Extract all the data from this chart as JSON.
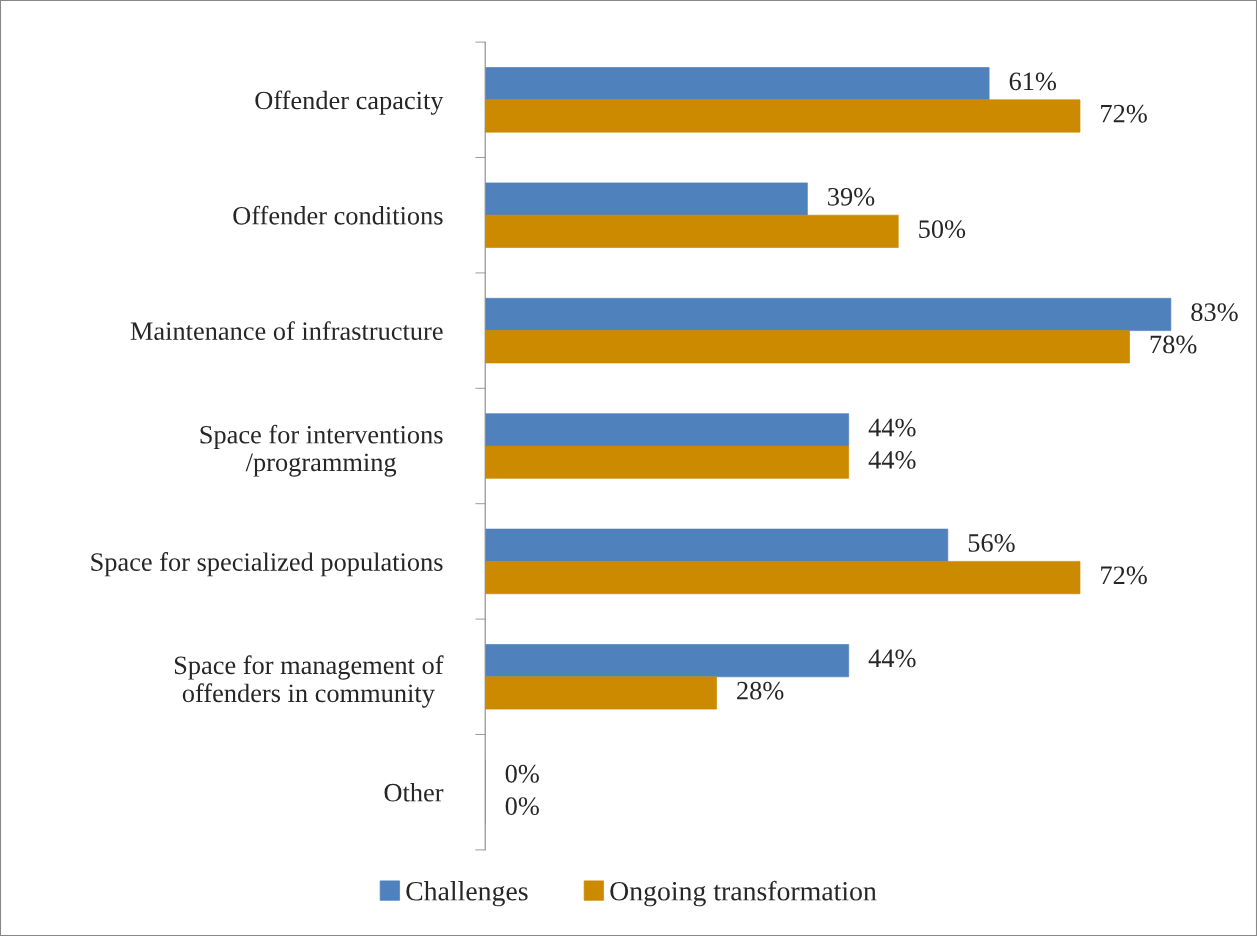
{
  "chart_data": {
    "type": "bar",
    "orientation": "horizontal",
    "categories": [
      "Offender capacity",
      "Offender conditions",
      "Maintenance of infrastructure",
      "Space for interventions\n/programming",
      "Space for specialized populations",
      "Space for management of\noffenders in community",
      "Other"
    ],
    "series": [
      {
        "name": "Challenges",
        "color": "#4f81bd",
        "values": [
          61,
          39,
          83,
          44,
          56,
          44,
          0
        ],
        "value_labels": [
          "61%",
          "39%",
          "83%",
          "44%",
          "56%",
          "44%",
          "0%"
        ]
      },
      {
        "name": "Ongoing transformation",
        "color": "#cc8a00",
        "values": [
          72,
          50,
          78,
          44,
          72,
          28,
          0
        ],
        "value_labels": [
          "72%",
          "50%",
          "78%",
          "44%",
          "72%",
          "28%",
          "0%"
        ]
      }
    ],
    "legend": "bottom"
  }
}
